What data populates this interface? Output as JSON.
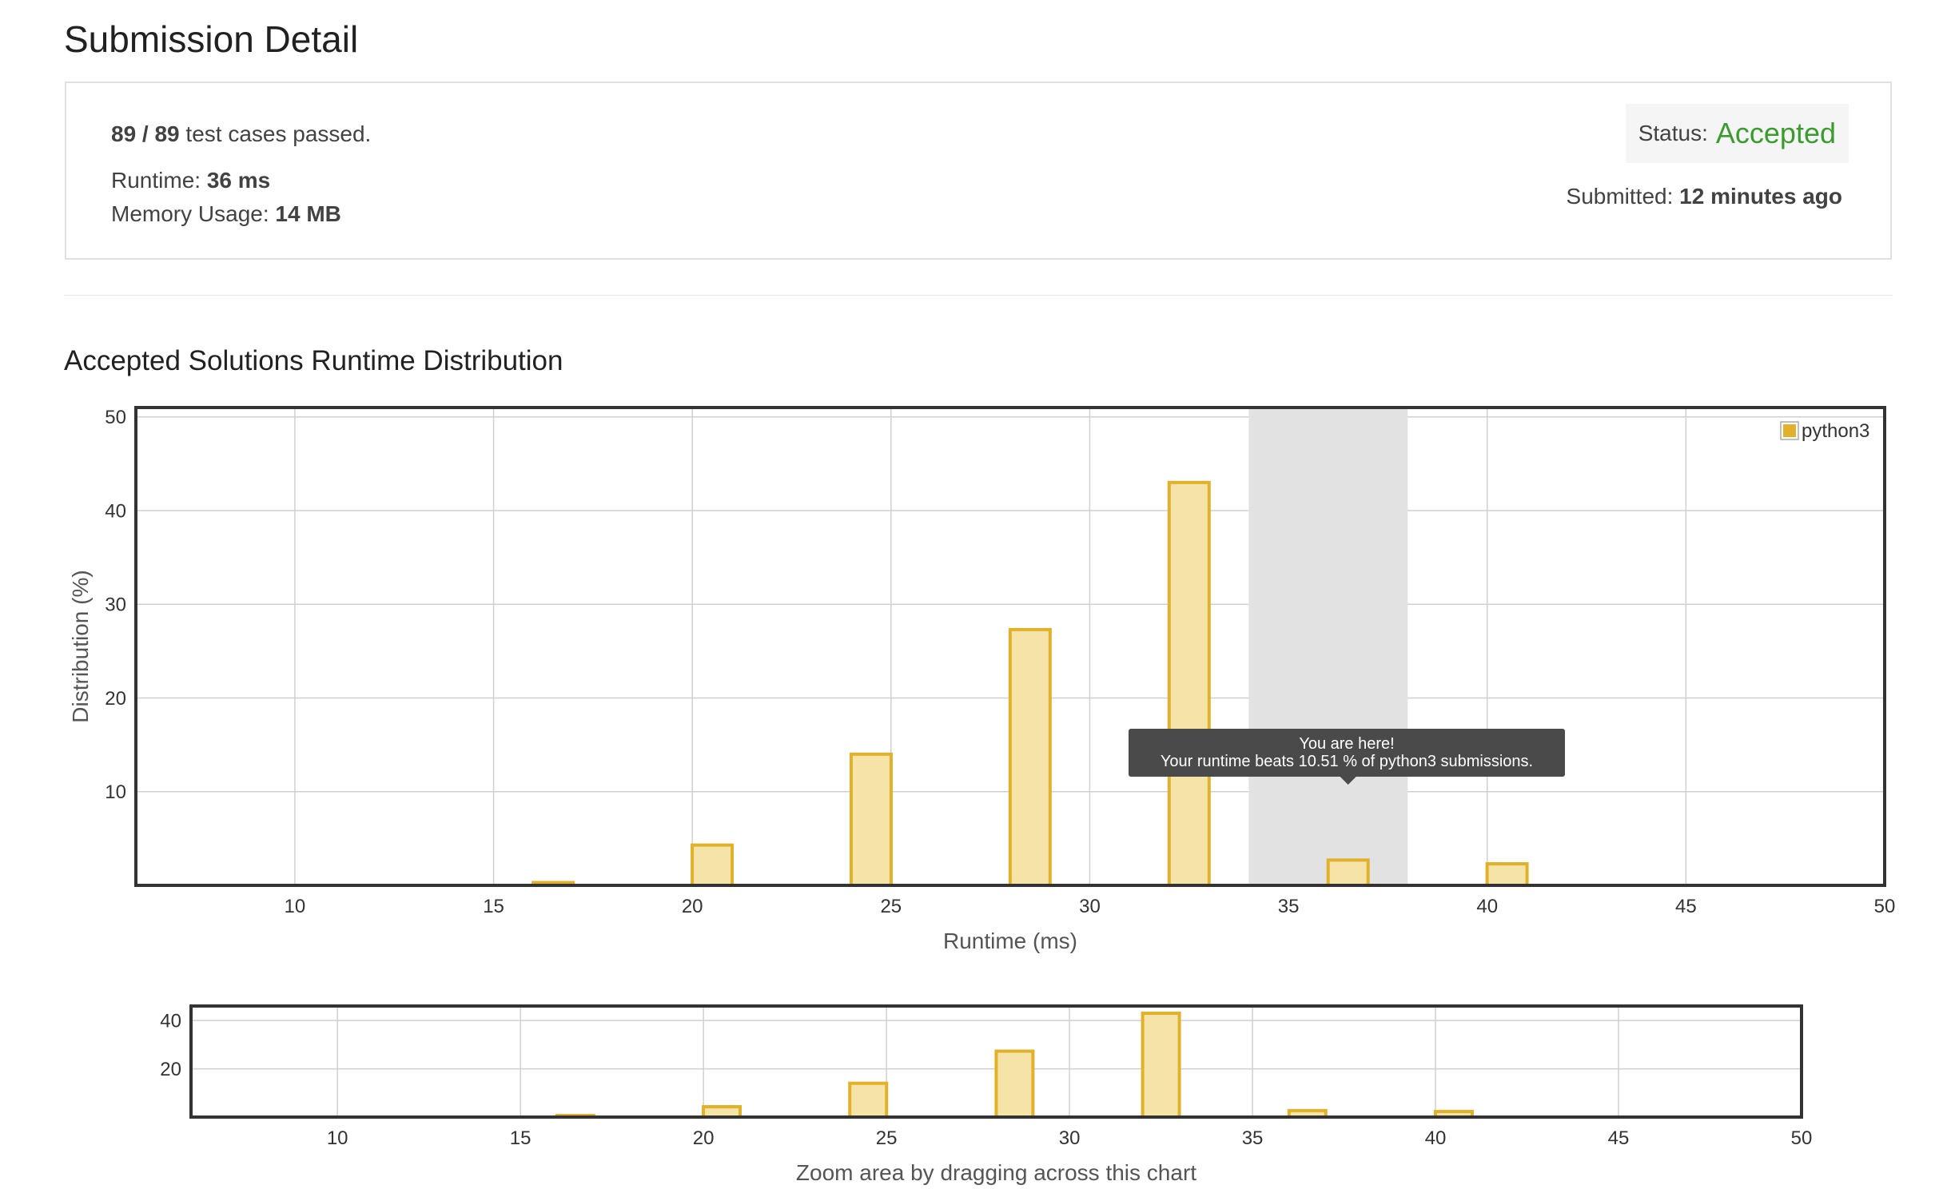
{
  "page_title": "Submission Detail",
  "summary": {
    "passed": "89 / 89",
    "passed_suffix": "test cases passed.",
    "runtime_label": "Runtime:",
    "runtime_value": "36 ms",
    "memory_label": "Memory Usage:",
    "memory_value": "14 MB",
    "status_label": "Status:",
    "status_value": "Accepted",
    "submitted_label": "Submitted:",
    "submitted_value": "12 minutes ago"
  },
  "colors": {
    "accepted": "#3b9b2e",
    "bar_fill": "#f5e3a8",
    "bar_stroke": "#e1b12c",
    "highlight_band": "#e2e2e2",
    "tooltip_bg": "#4a4a4a"
  },
  "section_title": "Accepted Solutions Runtime Distribution",
  "chart_data": [
    {
      "type": "bar",
      "title": "",
      "xlabel": "Runtime (ms)",
      "ylabel": "Distribution (%)",
      "xlim": [
        6,
        50
      ],
      "ylim": [
        0,
        51
      ],
      "xticks": [
        10,
        15,
        20,
        25,
        30,
        35,
        40,
        45,
        50
      ],
      "yticks": [
        10,
        20,
        30,
        40,
        50
      ],
      "grid": true,
      "legend_position": "top-right",
      "series": [
        {
          "name": "python3",
          "x": [
            16.5,
            20.5,
            24.5,
            28.5,
            32.5,
            36.5,
            40.5
          ],
          "values": [
            0.3,
            4.3,
            14.0,
            27.3,
            43.0,
            2.7,
            2.3
          ]
        }
      ],
      "highlight_range": [
        34,
        38
      ],
      "tooltip": {
        "line1": "You are here!",
        "line2": "Your runtime beats 10.51 % of python3 submissions."
      }
    },
    {
      "type": "bar",
      "title": "",
      "xlabel": "Zoom area by dragging across this chart",
      "ylabel": "",
      "xlim": [
        6,
        50
      ],
      "ylim": [
        0,
        46
      ],
      "xticks": [
        10,
        15,
        20,
        25,
        30,
        35,
        40,
        45,
        50
      ],
      "yticks": [
        20,
        40
      ],
      "grid": true,
      "series": [
        {
          "name": "python3",
          "x": [
            16.5,
            20.5,
            24.5,
            28.5,
            32.5,
            36.5,
            40.5
          ],
          "values": [
            0.3,
            4.3,
            14.0,
            27.3,
            43.0,
            2.7,
            2.3
          ]
        }
      ]
    }
  ]
}
